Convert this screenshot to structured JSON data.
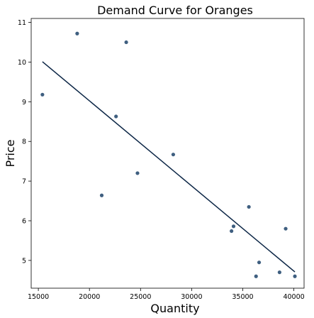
{
  "chart_data": {
    "type": "scatter",
    "title": "Demand Curve for Oranges",
    "xlabel": "Quantity",
    "ylabel": "Price",
    "xlim": [
      14300,
      41000
    ],
    "ylim": [
      4.3,
      11.1
    ],
    "xticks": [
      15000,
      20000,
      25000,
      30000,
      35000,
      40000
    ],
    "yticks": [
      5,
      6,
      7,
      8,
      9,
      10,
      11
    ],
    "grid": false,
    "colors": {
      "points": "#3f5f80",
      "line": "#0b2545"
    },
    "series": [
      {
        "kind": "scatter",
        "x": [
          15400,
          18800,
          23600,
          21200,
          22600,
          24700,
          28200,
          33900,
          34100,
          35600,
          36600,
          36300,
          38600,
          39200,
          40100
        ],
        "y": [
          9.18,
          10.72,
          10.5,
          6.64,
          8.63,
          7.2,
          7.67,
          5.74,
          5.86,
          6.35,
          4.95,
          4.6,
          4.7,
          5.8,
          4.6
        ]
      },
      {
        "kind": "line",
        "x": [
          15400,
          40100
        ],
        "y": [
          10.01,
          4.71
        ]
      }
    ]
  }
}
